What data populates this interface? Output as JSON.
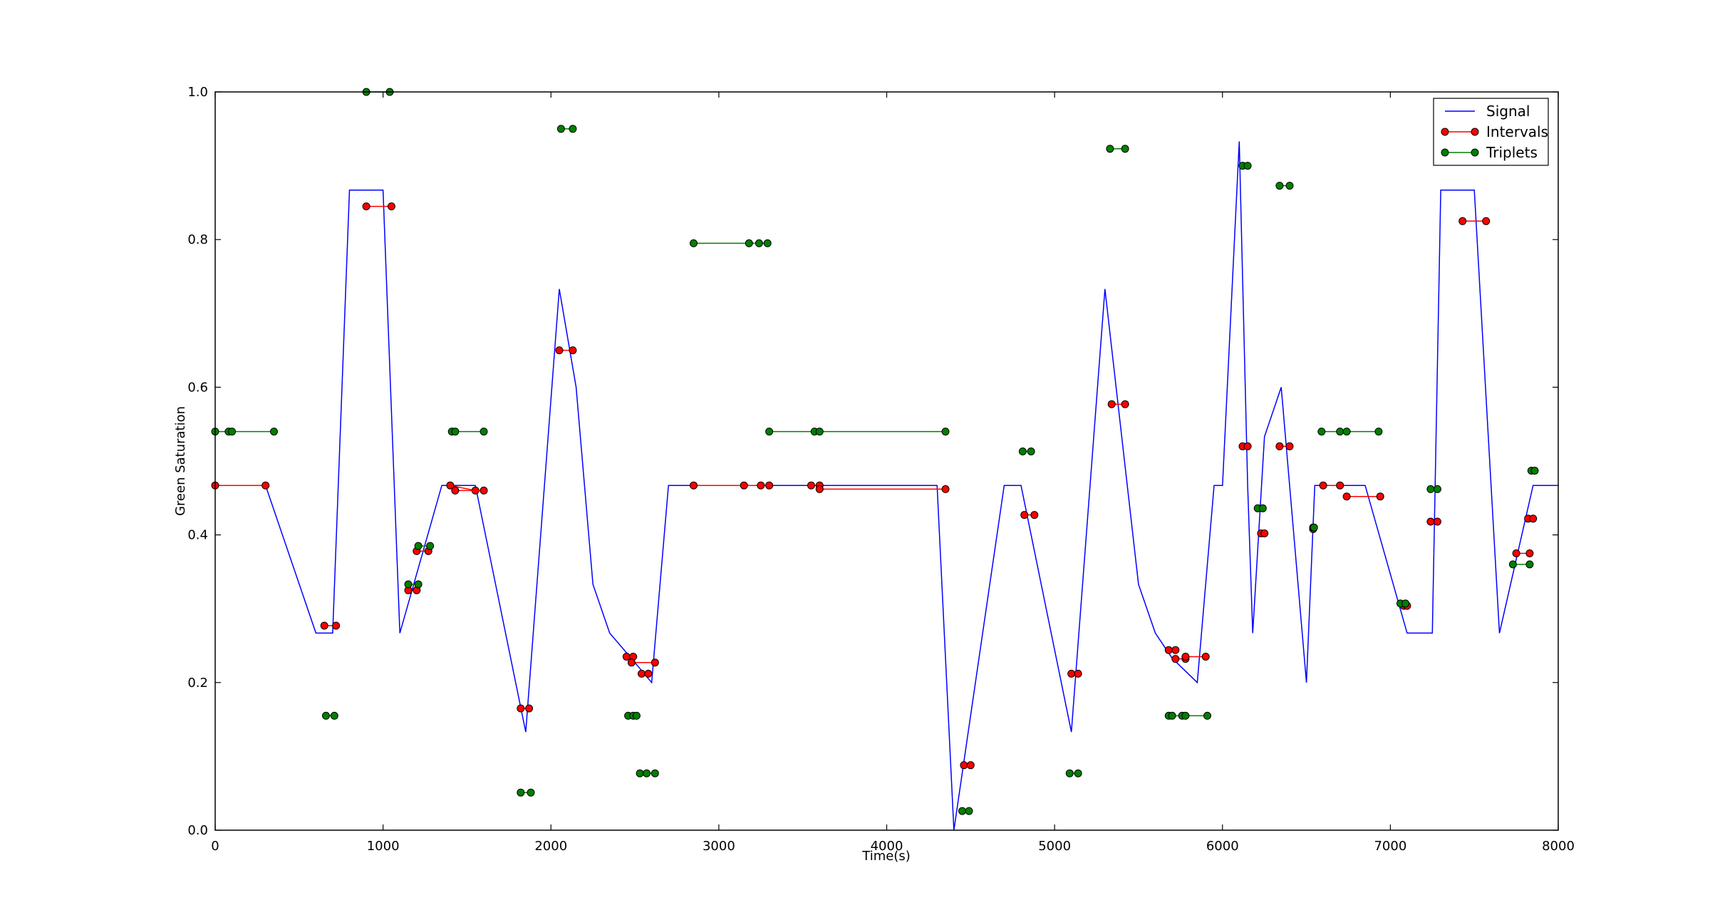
{
  "chart_data": {
    "type": "line",
    "title": "",
    "xlabel": "Time(s)",
    "ylabel": "Green Saturation",
    "xlim": [
      0,
      8000
    ],
    "ylim": [
      0.0,
      1.0
    ],
    "xticks": [
      "0",
      "1000",
      "2000",
      "3000",
      "4000",
      "5000",
      "6000",
      "7000",
      "8000"
    ],
    "yticks": [
      "0.0",
      "0.2",
      "0.4",
      "0.6",
      "0.8",
      "1.0"
    ],
    "grid": false,
    "legend_position": "top-right",
    "series": [
      {
        "name": "Signal",
        "color": "#0000ff",
        "style": "line",
        "points": [
          [
            0,
            0.467
          ],
          [
            300,
            0.467
          ],
          [
            600,
            0.267
          ],
          [
            700,
            0.267
          ],
          [
            800,
            0.867
          ],
          [
            1000,
            0.867
          ],
          [
            1100,
            0.267
          ],
          [
            1350,
            0.467
          ],
          [
            1550,
            0.467
          ],
          [
            1850,
            0.133
          ],
          [
            2050,
            0.733
          ],
          [
            2150,
            0.6
          ],
          [
            2250,
            0.333
          ],
          [
            2350,
            0.267
          ],
          [
            2500,
            0.227
          ],
          [
            2600,
            0.2
          ],
          [
            2700,
            0.467
          ],
          [
            4300,
            0.467
          ],
          [
            4400,
            0.0
          ],
          [
            4700,
            0.467
          ],
          [
            4800,
            0.467
          ],
          [
            5100,
            0.133
          ],
          [
            5300,
            0.733
          ],
          [
            5500,
            0.333
          ],
          [
            5600,
            0.267
          ],
          [
            5700,
            0.233
          ],
          [
            5850,
            0.2
          ],
          [
            5950,
            0.467
          ],
          [
            6000,
            0.467
          ],
          [
            6100,
            0.933
          ],
          [
            6150,
            0.467
          ],
          [
            6180,
            0.267
          ],
          [
            6250,
            0.533
          ],
          [
            6350,
            0.6
          ],
          [
            6500,
            0.2
          ],
          [
            6550,
            0.467
          ],
          [
            6850,
            0.467
          ],
          [
            7100,
            0.267
          ],
          [
            7250,
            0.267
          ],
          [
            7300,
            0.867
          ],
          [
            7500,
            0.867
          ],
          [
            7650,
            0.267
          ],
          [
            7850,
            0.467
          ],
          [
            8000,
            0.467
          ]
        ]
      },
      {
        "name": "Intervals",
        "color": "#ff0000",
        "style": "segments",
        "segments": [
          [
            [
              0,
              0.467
            ],
            [
              300,
              0.467
            ]
          ],
          [
            [
              650,
              0.277
            ],
            [
              720,
              0.277
            ]
          ],
          [
            [
              1050,
              0.845
            ],
            [
              900,
              0.845
            ]
          ],
          [
            [
              1150,
              0.325
            ],
            [
              1200,
              0.325
            ]
          ],
          [
            [
              1200,
              0.378
            ],
            [
              1270,
              0.378
            ]
          ],
          [
            [
              1400,
              0.467
            ],
            [
              1550,
              0.46
            ]
          ],
          [
            [
              1430,
              0.46
            ],
            [
              1600,
              0.46
            ]
          ],
          [
            [
              1820,
              0.165
            ],
            [
              1870,
              0.165
            ]
          ],
          [
            [
              2050,
              0.65
            ],
            [
              2130,
              0.65
            ]
          ],
          [
            [
              2450,
              0.235
            ],
            [
              2490,
              0.235
            ]
          ],
          [
            [
              2480,
              0.227
            ],
            [
              2620,
              0.227
            ]
          ],
          [
            [
              2540,
              0.212
            ],
            [
              2580,
              0.212
            ]
          ],
          [
            [
              2850,
              0.467
            ],
            [
              3300,
              0.467
            ]
          ],
          [
            [
              3150,
              0.467
            ],
            [
              3250,
              0.467
            ]
          ],
          [
            [
              3550,
              0.467
            ],
            [
              3600,
              0.467
            ]
          ],
          [
            [
              3600,
              0.462
            ],
            [
              4350,
              0.462
            ]
          ],
          [
            [
              4460,
              0.088
            ],
            [
              4500,
              0.088
            ]
          ],
          [
            [
              4820,
              0.427
            ],
            [
              4880,
              0.427
            ]
          ],
          [
            [
              5100,
              0.212
            ],
            [
              5140,
              0.212
            ]
          ],
          [
            [
              5340,
              0.577
            ],
            [
              5420,
              0.577
            ]
          ],
          [
            [
              5680,
              0.244
            ],
            [
              5720,
              0.244
            ]
          ],
          [
            [
              5720,
              0.232
            ],
            [
              5780,
              0.232
            ]
          ],
          [
            [
              5780,
              0.235
            ],
            [
              5900,
              0.235
            ]
          ],
          [
            [
              6120,
              0.52
            ],
            [
              6150,
              0.52
            ]
          ],
          [
            [
              6230,
              0.402
            ],
            [
              6250,
              0.402
            ]
          ],
          [
            [
              6340,
              0.52
            ],
            [
              6400,
              0.52
            ]
          ],
          [
            [
              6540,
              0.408
            ],
            [
              6540,
              0.408
            ]
          ],
          [
            [
              6600,
              0.467
            ],
            [
              6700,
              0.467
            ]
          ],
          [
            [
              6740,
              0.452
            ],
            [
              6940,
              0.452
            ]
          ],
          [
            [
              7080,
              0.304
            ],
            [
              7100,
              0.304
            ]
          ],
          [
            [
              7240,
              0.418
            ],
            [
              7280,
              0.418
            ]
          ],
          [
            [
              7430,
              0.825
            ],
            [
              7570,
              0.825
            ]
          ],
          [
            [
              7750,
              0.375
            ],
            [
              7830,
              0.375
            ]
          ],
          [
            [
              7820,
              0.422
            ],
            [
              7850,
              0.422
            ]
          ]
        ]
      },
      {
        "name": "Triplets",
        "color": "#008000",
        "style": "segments",
        "segments": [
          [
            [
              0,
              0.54
            ],
            [
              80,
              0.54
            ],
            [
              100,
              0.54
            ],
            [
              350,
              0.54
            ]
          ],
          [
            [
              660,
              0.155
            ],
            [
              710,
              0.155
            ]
          ],
          [
            [
              900,
              1.0
            ],
            [
              1040,
              1.0
            ]
          ],
          [
            [
              1150,
              0.333
            ],
            [
              1210,
              0.333
            ]
          ],
          [
            [
              1210,
              0.385
            ],
            [
              1280,
              0.385
            ]
          ],
          [
            [
              1410,
              0.54
            ],
            [
              1430,
              0.54
            ],
            [
              1600,
              0.54
            ]
          ],
          [
            [
              1820,
              0.051
            ],
            [
              1880,
              0.051
            ]
          ],
          [
            [
              2060,
              0.95
            ],
            [
              2130,
              0.95
            ]
          ],
          [
            [
              2460,
              0.155
            ],
            [
              2490,
              0.155
            ],
            [
              2510,
              0.155
            ]
          ],
          [
            [
              2530,
              0.077
            ],
            [
              2570,
              0.077
            ],
            [
              2620,
              0.077
            ]
          ],
          [
            [
              2850,
              0.795
            ],
            [
              3180,
              0.795
            ],
            [
              3240,
              0.795
            ],
            [
              3290,
              0.795
            ]
          ],
          [
            [
              3300,
              0.54
            ],
            [
              3570,
              0.54
            ],
            [
              3600,
              0.54
            ],
            [
              4350,
              0.54
            ]
          ],
          [
            [
              4450,
              0.026
            ],
            [
              4490,
              0.026
            ]
          ],
          [
            [
              4810,
              0.513
            ],
            [
              4860,
              0.513
            ]
          ],
          [
            [
              5090,
              0.077
            ],
            [
              5140,
              0.077
            ]
          ],
          [
            [
              5330,
              0.923
            ],
            [
              5420,
              0.923
            ]
          ],
          [
            [
              5680,
              0.155
            ],
            [
              5700,
              0.155
            ],
            [
              5760,
              0.155
            ],
            [
              5780,
              0.155
            ],
            [
              5910,
              0.155
            ]
          ],
          [
            [
              6120,
              0.9
            ],
            [
              6150,
              0.9
            ]
          ],
          [
            [
              6210,
              0.436
            ],
            [
              6240,
              0.436
            ]
          ],
          [
            [
              6340,
              0.873
            ],
            [
              6400,
              0.873
            ]
          ],
          [
            [
              6540,
              0.41
            ],
            [
              6545,
              0.41
            ]
          ],
          [
            [
              6590,
              0.54
            ],
            [
              6700,
              0.54
            ],
            [
              6740,
              0.54
            ],
            [
              6930,
              0.54
            ]
          ],
          [
            [
              7060,
              0.307
            ],
            [
              7090,
              0.307
            ]
          ],
          [
            [
              7240,
              0.462
            ],
            [
              7280,
              0.462
            ]
          ],
          [
            [
              7730,
              0.36
            ],
            [
              7830,
              0.36
            ]
          ],
          [
            [
              7840,
              0.487
            ],
            [
              7860,
              0.487
            ]
          ]
        ]
      }
    ]
  }
}
